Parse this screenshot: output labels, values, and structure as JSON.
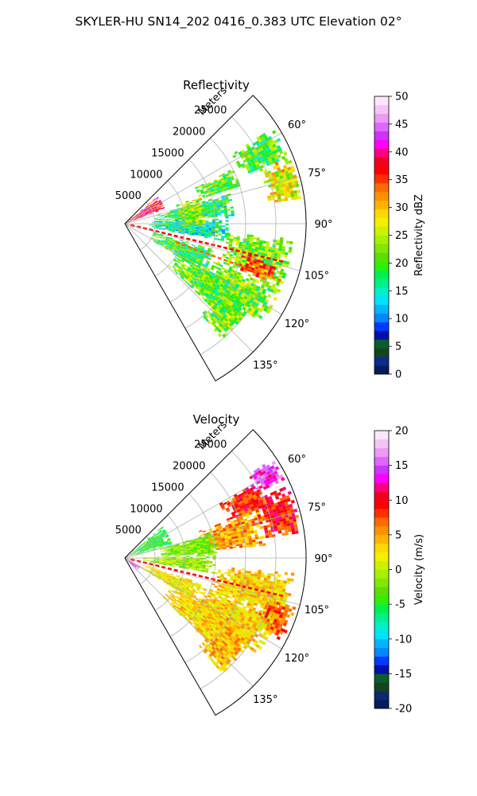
{
  "figure": {
    "suptitle": "SKYLER-HU  SN14_202  0416_0.383 UTC Elevation 02°"
  },
  "chart_data": [
    {
      "type": "heatmap",
      "projection": "polar-sector",
      "title": "Reflectivity",
      "range_label": "Meters",
      "radial_ticks": [
        5000,
        10000,
        15000,
        20000,
        25000
      ],
      "radial_tick_labels": [
        "5000",
        "10000",
        "15000",
        "20000",
        "25000"
      ],
      "rlim": [
        0,
        30000
      ],
      "azimuth_range_deg": [
        45,
        150
      ],
      "azimuth_ticks_deg": [
        60,
        75,
        90,
        105,
        120,
        135
      ],
      "azimuth_tick_labels": [
        "60°",
        "75°",
        "90°",
        "105°",
        "120°",
        "135°"
      ],
      "grid": true,
      "colorbar": {
        "label": "Reflectivity dBZ",
        "range": [
          0,
          50
        ],
        "ticks": [
          0,
          5,
          10,
          15,
          20,
          25,
          30,
          35,
          40,
          45,
          50
        ],
        "colors": [
          "#061a5e",
          "#0f2a8c",
          "#12451f",
          "#0d5c2c",
          "#0010a8",
          "#0038ff",
          "#0088ff",
          "#00b4ff",
          "#00e0ff",
          "#00f0c8",
          "#00f08c",
          "#00f050",
          "#2ff000",
          "#5ae000",
          "#84e600",
          "#a8f000",
          "#cdf000",
          "#f0f000",
          "#ffd800",
          "#ffb400",
          "#ff9000",
          "#ff6a00",
          "#ff3000",
          "#ff0000",
          "#f00020",
          "#ff0080",
          "#ff00ff",
          "#cc33ff",
          "#e066ff",
          "#ee99f5",
          "#f5c4f5",
          "#fce6fc"
        ]
      },
      "echo_regions": [
        {
          "az": [
            57,
            68
          ],
          "r": [
            21000,
            29000
          ],
          "level": 20
        },
        {
          "az": [
            68,
            82
          ],
          "r": [
            24000,
            29500
          ],
          "level": 27
        },
        {
          "az": [
            63,
            72
          ],
          "r": [
            13000,
            20000
          ],
          "level": 20
        },
        {
          "az": [
            74,
            86
          ],
          "r": [
            5000,
            18000
          ],
          "level": 18
        },
        {
          "az": [
            86,
            100
          ],
          "r": [
            4000,
            17000
          ],
          "level": 16
        },
        {
          "az": [
            95,
            112
          ],
          "r": [
            17000,
            28000
          ],
          "level": 22
        },
        {
          "az": [
            104,
            112
          ],
          "r": [
            20000,
            26000
          ],
          "level": 33
        },
        {
          "az": [
            112,
            126
          ],
          "r": [
            16000,
            28000
          ],
          "level": 22
        },
        {
          "az": [
            118,
            134
          ],
          "r": [
            10000,
            22000
          ],
          "level": 21
        },
        {
          "az": [
            106,
            122
          ],
          "r": [
            5000,
            15000
          ],
          "level": 19
        },
        {
          "az": [
            122,
            140
          ],
          "r": [
            19000,
            25000
          ],
          "level": 22
        },
        {
          "az": [
            50,
            70
          ],
          "r": [
            500,
            7000
          ],
          "level": 38
        },
        {
          "az": [
            70,
            92
          ],
          "r": [
            9000,
            13000
          ],
          "level": 24
        }
      ],
      "linear_streaks": [
        {
          "az": 103.5,
          "r": [
            1000,
            27000
          ],
          "level": 36
        },
        {
          "az": 110,
          "r": [
            9000,
            28000
          ],
          "level": 34
        }
      ]
    },
    {
      "type": "heatmap",
      "projection": "polar-sector",
      "title": "Velocity",
      "range_label": "Meters",
      "radial_ticks": [
        5000,
        10000,
        15000,
        20000,
        25000
      ],
      "radial_tick_labels": [
        "5000",
        "10000",
        "15000",
        "20000",
        "25000"
      ],
      "rlim": [
        0,
        30000
      ],
      "azimuth_range_deg": [
        45,
        150
      ],
      "azimuth_ticks_deg": [
        60,
        75,
        90,
        105,
        120,
        135
      ],
      "azimuth_tick_labels": [
        "60°",
        "75°",
        "90°",
        "105°",
        "120°",
        "135°"
      ],
      "grid": true,
      "colorbar": {
        "label": "Velocity (m/s)",
        "range": [
          -20,
          20
        ],
        "ticks": [
          -20,
          -15,
          -10,
          -5,
          0,
          5,
          10,
          15,
          20
        ],
        "colors": [
          "#061a5e",
          "#0b2a6e",
          "#12451f",
          "#0d5c2c",
          "#0010a8",
          "#0038ff",
          "#0088ff",
          "#00b4ff",
          "#00e0ff",
          "#00f0c8",
          "#00f08c",
          "#00f050",
          "#2ff000",
          "#5ae000",
          "#84e600",
          "#a8f000",
          "#cdf000",
          "#f0f000",
          "#ffd800",
          "#ffb400",
          "#ff9000",
          "#ff6a00",
          "#ff3000",
          "#ff0000",
          "#f00020",
          "#ff0080",
          "#ff00ff",
          "#cc33ff",
          "#e066ff",
          "#ee99f5",
          "#f5c4f5",
          "#fce6fc"
        ]
      },
      "echo_regions": [
        {
          "az": [
            56,
            64
          ],
          "r": [
            24000,
            29500
          ],
          "level": 14
        },
        {
          "az": [
            60,
            70
          ],
          "r": [
            18000,
            25000
          ],
          "level": 9
        },
        {
          "az": [
            66,
            82
          ],
          "r": [
            23000,
            29500
          ],
          "level": 9
        },
        {
          "az": [
            70,
            85
          ],
          "r": [
            13000,
            23000
          ],
          "level": 5
        },
        {
          "az": [
            74,
            88
          ],
          "r": [
            6000,
            15000
          ],
          "level": -2
        },
        {
          "az": [
            50,
            75
          ],
          "r": [
            1000,
            8000
          ],
          "level": -5
        },
        {
          "az": [
            88,
            100
          ],
          "r": [
            3000,
            15000
          ],
          "level": -1
        },
        {
          "az": [
            95,
            112
          ],
          "r": [
            15000,
            28000
          ],
          "level": 3
        },
        {
          "az": [
            106,
            118
          ],
          "r": [
            24000,
            29000
          ],
          "level": 7
        },
        {
          "az": [
            110,
            126
          ],
          "r": [
            14000,
            27000
          ],
          "level": 3
        },
        {
          "az": [
            118,
            136
          ],
          "r": [
            9000,
            21000
          ],
          "level": 3
        },
        {
          "az": [
            108,
            122
          ],
          "r": [
            3000,
            14000
          ],
          "level": 2
        },
        {
          "az": [
            120,
            140
          ],
          "r": [
            19000,
            25000
          ],
          "level": 4
        },
        {
          "az": [
            118,
            135
          ],
          "r": [
            200,
            2500
          ],
          "level": 14
        }
      ],
      "linear_streaks": [
        {
          "az": 103.5,
          "r": [
            1000,
            27000
          ],
          "level": 9
        }
      ]
    }
  ]
}
